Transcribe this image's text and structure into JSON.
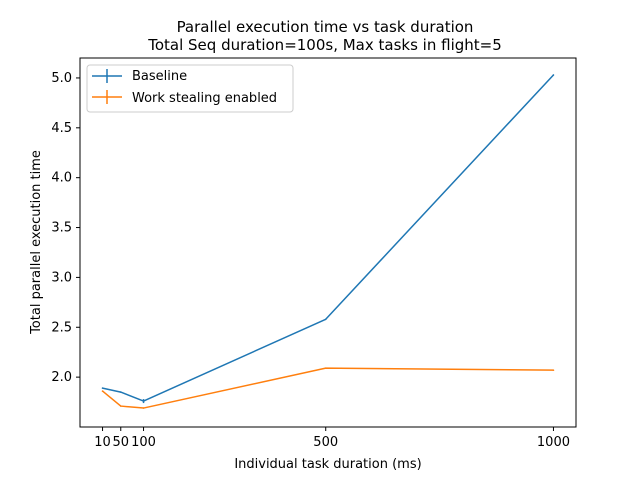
{
  "chart_data": {
    "type": "line",
    "title": "Parallel execution time vs task duration",
    "subtitle": "Total Seq duration=100s, Max tasks in flight=5",
    "xlabel": "Individual task duration (ms)",
    "ylabel": "Total parallel execution time",
    "x": [
      10,
      50,
      100,
      500,
      1000
    ],
    "xticks": [
      10,
      50,
      100,
      500,
      1000
    ],
    "xtick_labels": [
      "10",
      "50",
      "100",
      "500",
      "1000"
    ],
    "yticks": [
      2.0,
      2.5,
      3.0,
      3.5,
      4.0,
      4.5,
      5.0
    ],
    "ytick_labels": [
      "2.0",
      "2.5",
      "3.0",
      "3.5",
      "4.0",
      "4.5",
      "5.0"
    ],
    "xlim": [
      -39.5,
      1049.5
    ],
    "ylim": [
      1.5,
      5.2
    ],
    "grid": false,
    "legend_position": "top-left",
    "series": [
      {
        "name": "Baseline",
        "color": "#1f77b4",
        "values": [
          1.89,
          1.85,
          1.76,
          2.58,
          5.03
        ],
        "errors": [
          0.0,
          0.0,
          0.02,
          0.0,
          0.0
        ]
      },
      {
        "name": "Work stealing enabled",
        "color": "#ff7f0e",
        "values": [
          1.86,
          1.71,
          1.69,
          2.09,
          2.07
        ],
        "errors": [
          0.0,
          0.0,
          0.0,
          0.0,
          0.0
        ]
      }
    ]
  }
}
